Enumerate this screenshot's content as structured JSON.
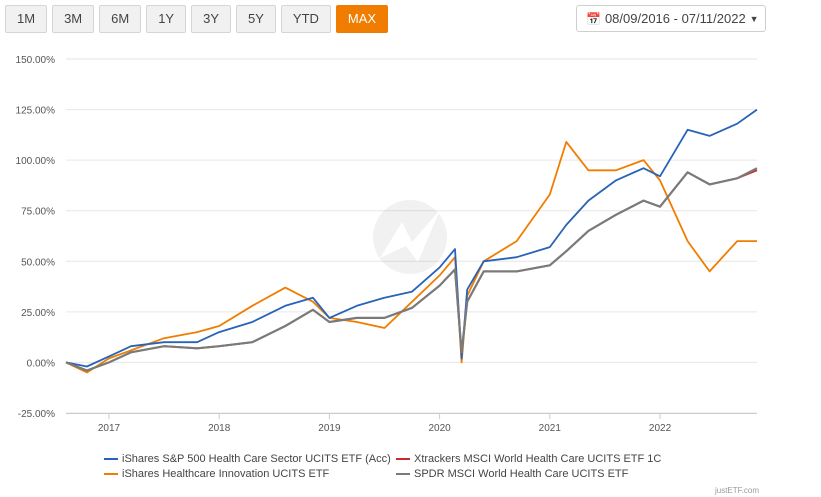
{
  "toolbar": {
    "ranges": [
      "1M",
      "3M",
      "6M",
      "1Y",
      "3Y",
      "5Y",
      "YTD",
      "MAX"
    ],
    "active": "MAX",
    "date_range": "08/09/2016 - 07/11/2022",
    "calendar_icon": "calendar-icon",
    "caret_icon": "caret-down-icon"
  },
  "colors": {
    "orange_accent": "#f07d00",
    "series": [
      "#2763b8",
      "#c92a2a",
      "#f07d00",
      "#7a7a7a"
    ]
  },
  "chart_data": {
    "type": "line",
    "title": "",
    "xlabel": "",
    "ylabel": "",
    "x_ticks": [
      "2017",
      "2018",
      "2019",
      "2020",
      "2021",
      "2022"
    ],
    "y_ticks": [
      "150.00%",
      "125.00%",
      "100.00%",
      "75.00%",
      "50.00%",
      "25.00%",
      "0.00%",
      "-25.00%"
    ],
    "xlim": [
      2016.61,
      2022.88
    ],
    "ylim": [
      -25,
      150
    ],
    "grid": true,
    "legend_position": "bottom",
    "x": [
      2016.61,
      2016.8,
      2017.0,
      2017.2,
      2017.5,
      2017.8,
      2018.0,
      2018.3,
      2018.6,
      2018.85,
      2019.0,
      2019.25,
      2019.5,
      2019.75,
      2020.0,
      2020.14,
      2020.2,
      2020.25,
      2020.4,
      2020.7,
      2021.0,
      2021.15,
      2021.35,
      2021.6,
      2021.85,
      2022.0,
      2022.25,
      2022.45,
      2022.7,
      2022.88
    ],
    "series": [
      {
        "name": "iShares S&P 500 Health Care Sector UCITS ETF (Acc)",
        "values": [
          0,
          -2,
          3,
          8,
          10,
          10,
          15,
          20,
          28,
          32,
          22,
          28,
          32,
          35,
          47,
          56,
          2,
          36,
          50,
          52,
          57,
          68,
          80,
          90,
          96,
          92,
          115,
          112,
          118,
          125
        ]
      },
      {
        "name": "Xtrackers MSCI World Health Care UCITS ETF 1C",
        "values": [
          0,
          -4,
          0,
          5,
          8,
          7,
          8,
          10,
          18,
          26,
          20,
          22,
          22,
          27,
          38,
          46,
          5,
          30,
          45,
          45,
          48,
          55,
          65,
          73,
          80,
          77,
          94,
          88,
          91,
          95
        ]
      },
      {
        "name": "iShares Healthcare Innovation UCITS ETF",
        "values": [
          0,
          -5,
          2,
          6,
          12,
          15,
          18,
          28,
          37,
          30,
          22,
          20,
          17,
          30,
          43,
          52,
          0,
          33,
          50,
          60,
          83,
          109,
          95,
          95,
          100,
          90,
          60,
          45,
          60,
          60
        ]
      },
      {
        "name": "SPDR MSCI World Health Care UCITS ETF",
        "values": [
          0,
          -4,
          0,
          5,
          8,
          7,
          8,
          10,
          18,
          26,
          20,
          22,
          22,
          27,
          38,
          46,
          5,
          30,
          45,
          45,
          48,
          55,
          65,
          73,
          80,
          77,
          94,
          88,
          91,
          96
        ]
      }
    ]
  },
  "legend": {
    "items": [
      "iShares S&P 500 Health Care Sector UCITS ETF (Acc)",
      "Xtrackers MSCI World Health Care UCITS ETF 1C",
      "iShares Healthcare Innovation UCITS ETF",
      "SPDR MSCI World Health Care UCITS ETF"
    ]
  },
  "credit": "justETF.com"
}
